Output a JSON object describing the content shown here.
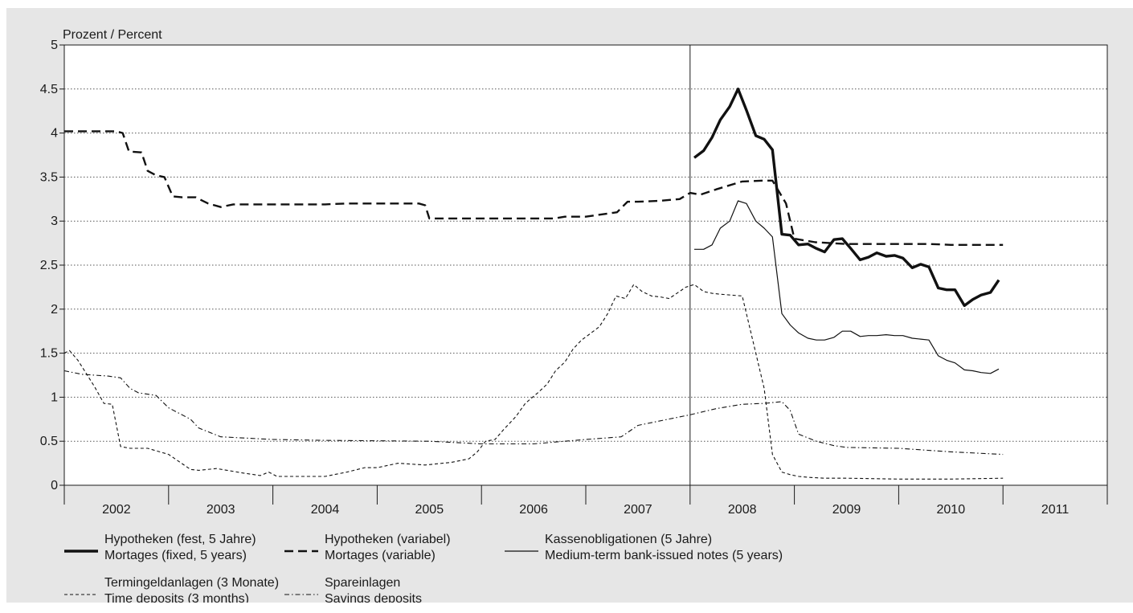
{
  "chart_data": {
    "type": "line",
    "ylabel": "Prozent / Percent",
    "ylim": [
      0,
      5
    ],
    "yticks": [
      "0",
      "0.5",
      "1",
      "1.5",
      "2",
      "2.5",
      "3",
      "3.5",
      "4",
      "4.5",
      "5"
    ],
    "xlim": [
      2001.5,
      2011.5
    ],
    "xtick_labels": [
      "2002",
      "2003",
      "2004",
      "2005",
      "2006",
      "2007",
      "2008",
      "2009",
      "2010",
      "2011"
    ],
    "vertical_marker_x": 2007.5,
    "grid": "horizontal dotted",
    "background": "#e6e6e6",
    "series": [
      {
        "name": "Hypotheken (fest, 5 Jahre)",
        "name_en": "Mortages (fixed, 5 years)",
        "style": "solid-thick",
        "x": [
          2007.54,
          2007.63,
          2007.71,
          2007.79,
          2007.88,
          2007.96,
          2008.04,
          2008.13,
          2008.21,
          2008.29,
          2008.38,
          2008.46,
          2008.54,
          2008.63,
          2008.71,
          2008.79,
          2008.88,
          2008.96,
          2009.04,
          2009.13,
          2009.21,
          2009.29,
          2009.38,
          2009.46,
          2009.54,
          2009.63,
          2009.71,
          2009.79,
          2009.88,
          2009.96,
          2010.04,
          2010.13,
          2010.21,
          2010.29,
          2010.38,
          2010.46
        ],
        "y": [
          3.72,
          3.8,
          3.95,
          4.15,
          4.3,
          4.5,
          4.26,
          3.97,
          3.93,
          3.81,
          2.85,
          2.84,
          2.73,
          2.74,
          2.69,
          2.65,
          2.79,
          2.8,
          2.69,
          2.56,
          2.59,
          2.64,
          2.6,
          2.61,
          2.58,
          2.47,
          2.51,
          2.48,
          2.24,
          2.22,
          2.22,
          2.04,
          2.11,
          2.16,
          2.19,
          2.33
        ]
      },
      {
        "name": "Hypotheken (variabel)",
        "name_en": "Mortages (variable)",
        "style": "dashed-thick",
        "x": [
          2001.5,
          2001.9,
          2002.0,
          2002.06,
          2002.12,
          2002.24,
          2002.3,
          2002.38,
          2002.46,
          2002.54,
          2002.63,
          2002.76,
          2002.88,
          2003.0,
          2003.12,
          2003.21,
          2003.29,
          2003.5,
          2004.0,
          2004.2,
          2004.5,
          2004.9,
          2004.96,
          2005.0,
          2005.5,
          2006.0,
          2006.2,
          2006.3,
          2006.5,
          2006.8,
          2006.9,
          2007.0,
          2007.2,
          2007.4,
          2007.5,
          2007.6,
          2007.75,
          2008.0,
          2008.2,
          2008.29,
          2008.42,
          2008.5,
          2008.7,
          2009.0,
          2009.5,
          2009.8,
          2010.0,
          2010.5
        ],
        "y": [
          4.02,
          4.02,
          4.02,
          4.0,
          3.79,
          3.78,
          3.57,
          3.52,
          3.5,
          3.28,
          3.27,
          3.27,
          3.2,
          3.16,
          3.19,
          3.19,
          3.19,
          3.19,
          3.19,
          3.2,
          3.2,
          3.2,
          3.18,
          3.03,
          3.03,
          3.03,
          3.03,
          3.05,
          3.05,
          3.1,
          3.22,
          3.22,
          3.23,
          3.25,
          3.32,
          3.3,
          3.36,
          3.45,
          3.46,
          3.46,
          3.2,
          2.8,
          2.76,
          2.74,
          2.74,
          2.74,
          2.73,
          2.73
        ]
      },
      {
        "name": "Kassenobligationen (5 Jahre)",
        "name_en": "Medium-term bank-issued notes (5 years)",
        "style": "solid-thin",
        "x": [
          2007.54,
          2007.63,
          2007.71,
          2007.79,
          2007.88,
          2007.96,
          2008.04,
          2008.13,
          2008.21,
          2008.29,
          2008.38,
          2008.46,
          2008.54,
          2008.63,
          2008.71,
          2008.79,
          2008.88,
          2008.96,
          2009.04,
          2009.13,
          2009.21,
          2009.29,
          2009.38,
          2009.46,
          2009.54,
          2009.63,
          2009.71,
          2009.79,
          2009.88,
          2009.96,
          2010.04,
          2010.13,
          2010.21,
          2010.29,
          2010.38,
          2010.46
        ],
        "y": [
          2.68,
          2.68,
          2.73,
          2.92,
          3.0,
          3.23,
          3.2,
          3.0,
          2.92,
          2.82,
          1.95,
          1.82,
          1.73,
          1.67,
          1.65,
          1.65,
          1.68,
          1.75,
          1.75,
          1.69,
          1.7,
          1.7,
          1.71,
          1.7,
          1.7,
          1.67,
          1.66,
          1.65,
          1.47,
          1.42,
          1.39,
          1.31,
          1.3,
          1.28,
          1.27,
          1.32
        ]
      },
      {
        "name": "Termingeldanlagen (3 Monate)",
        "name_en": "Time deposits (3 months)",
        "style": "dashed-thin",
        "x": [
          2001.5,
          2001.55,
          2001.63,
          2001.71,
          2001.79,
          2001.88,
          2001.96,
          2002.04,
          2002.13,
          2002.3,
          2002.5,
          2002.71,
          2002.79,
          2002.96,
          2003.21,
          2003.38,
          2003.46,
          2003.54,
          2003.67,
          2004.0,
          2004.21,
          2004.38,
          2004.5,
          2004.7,
          2004.96,
          2005.21,
          2005.38,
          2005.46,
          2005.54,
          2005.63,
          2005.71,
          2005.83,
          2005.92,
          2006.04,
          2006.13,
          2006.21,
          2006.3,
          2006.38,
          2006.46,
          2006.54,
          2006.63,
          2006.71,
          2006.79,
          2006.88,
          2006.96,
          2007.04,
          2007.13,
          2007.21,
          2007.3,
          2007.46,
          2007.54,
          2007.63,
          2007.71,
          2007.79,
          2008.0,
          2008.21,
          2008.29,
          2008.38,
          2008.46,
          2008.54,
          2008.63,
          2008.79,
          2009.0,
          2009.5,
          2010.0,
          2010.5
        ],
        "y": [
          1.5,
          1.53,
          1.42,
          1.27,
          1.12,
          0.93,
          0.92,
          0.44,
          0.42,
          0.42,
          0.35,
          0.18,
          0.17,
          0.19,
          0.14,
          0.11,
          0.15,
          0.1,
          0.1,
          0.1,
          0.15,
          0.2,
          0.2,
          0.25,
          0.23,
          0.26,
          0.3,
          0.38,
          0.5,
          0.52,
          0.63,
          0.78,
          0.93,
          1.05,
          1.15,
          1.3,
          1.4,
          1.55,
          1.65,
          1.72,
          1.8,
          1.95,
          2.15,
          2.12,
          2.28,
          2.2,
          2.15,
          2.14,
          2.12,
          2.25,
          2.28,
          2.2,
          2.18,
          2.17,
          2.15,
          1.1,
          0.35,
          0.15,
          0.12,
          0.1,
          0.09,
          0.08,
          0.08,
          0.07,
          0.07,
          0.08
        ]
      },
      {
        "name": "Spareinlagen",
        "name_en": "Savings deposits",
        "style": "dashdot-thin",
        "x": [
          2001.5,
          2001.67,
          2001.92,
          2002.04,
          2002.13,
          2002.21,
          2002.38,
          2002.5,
          2002.71,
          2002.79,
          2003.0,
          2003.5,
          2004.0,
          2005.0,
          2005.5,
          2006.0,
          2006.5,
          2006.84,
          2007.0,
          2007.29,
          2007.5,
          2007.75,
          2008.0,
          2008.21,
          2008.38,
          2008.46,
          2008.54,
          2008.71,
          2008.88,
          2009.0,
          2009.5,
          2009.75,
          2010.0,
          2010.5
        ],
        "y": [
          1.3,
          1.26,
          1.24,
          1.22,
          1.1,
          1.05,
          1.02,
          0.88,
          0.75,
          0.65,
          0.55,
          0.52,
          0.51,
          0.5,
          0.47,
          0.47,
          0.52,
          0.55,
          0.68,
          0.75,
          0.8,
          0.87,
          0.92,
          0.93,
          0.95,
          0.85,
          0.58,
          0.5,
          0.45,
          0.43,
          0.42,
          0.4,
          0.38,
          0.35
        ]
      }
    ]
  }
}
